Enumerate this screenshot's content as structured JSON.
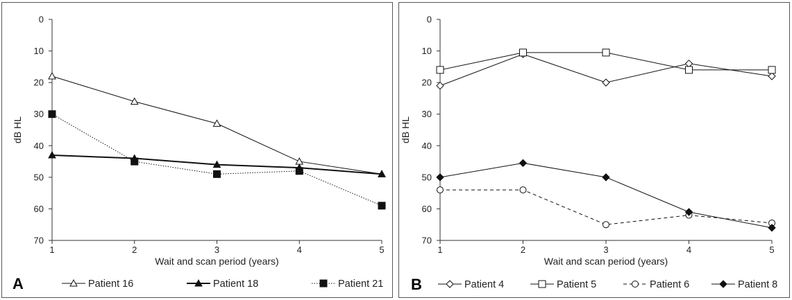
{
  "chart_data": [
    {
      "panel": "A",
      "type": "line",
      "xlabel": "Wait and scan period (years)",
      "ylabel": "dB HL",
      "x": [
        1,
        2,
        3,
        4,
        5
      ],
      "xlim": [
        1,
        5
      ],
      "ylim": [
        0,
        70
      ],
      "y_inverted": true,
      "yticks": [
        0,
        10,
        20,
        30,
        40,
        50,
        60,
        70
      ],
      "xticks": [
        1,
        2,
        3,
        4,
        5
      ],
      "legend": "bottom",
      "series": [
        {
          "name": "Patient 16",
          "marker": "triangle-open",
          "line": "solid-thin",
          "values": [
            18,
            26,
            33,
            45,
            49
          ]
        },
        {
          "name": "Patient 18",
          "marker": "triangle-filled",
          "line": "solid-thick",
          "values": [
            43,
            44,
            46,
            47,
            49
          ]
        },
        {
          "name": "Patient 21",
          "marker": "square-filled",
          "line": "dotted",
          "values": [
            30,
            45,
            49,
            48,
            59
          ]
        }
      ]
    },
    {
      "panel": "B",
      "type": "line",
      "xlabel": "Wait and scan period (years)",
      "ylabel": "dB HL",
      "x": [
        1,
        2,
        3,
        4,
        5
      ],
      "xlim": [
        1,
        5
      ],
      "ylim": [
        0,
        70
      ],
      "y_inverted": true,
      "yticks": [
        0,
        10,
        20,
        30,
        40,
        50,
        60,
        70
      ],
      "xticks": [
        1,
        2,
        3,
        4,
        5
      ],
      "legend": "bottom",
      "series": [
        {
          "name": "Patient 4",
          "marker": "diamond-open",
          "line": "solid-thin",
          "values": [
            21,
            11,
            20,
            14,
            18
          ]
        },
        {
          "name": "Patient 5",
          "marker": "square-open",
          "line": "solid-thin",
          "values": [
            16,
            10.5,
            10.5,
            16,
            16
          ]
        },
        {
          "name": "Patient 6",
          "marker": "circle-open",
          "line": "dashed",
          "values": [
            54,
            54,
            65,
            62,
            64.5
          ]
        },
        {
          "name": "Patient 8",
          "marker": "diamond-filled",
          "line": "solid-thin",
          "values": [
            50,
            45.5,
            50,
            61,
            66
          ]
        }
      ]
    }
  ]
}
